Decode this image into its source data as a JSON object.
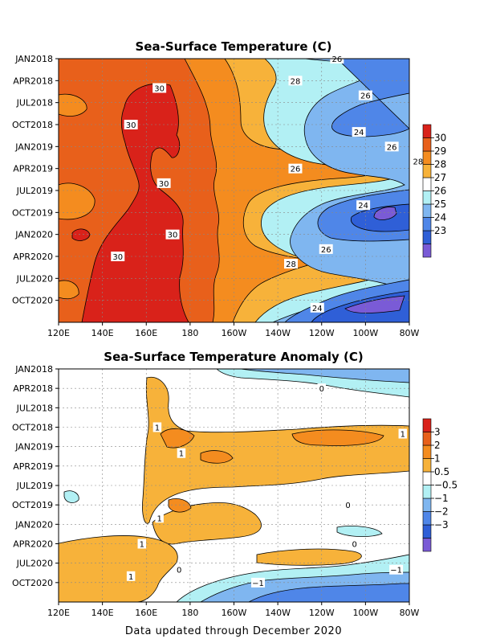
{
  "footer": "Data updated through December 2020",
  "chart_data": [
    {
      "type": "heatmap",
      "title": "Sea-Surface Temperature (C)",
      "x_ticks": [
        "120E",
        "140E",
        "160E",
        "180",
        "160W",
        "140W",
        "120W",
        "100W",
        "80W"
      ],
      "y_ticks": [
        "JAN2018",
        "APR2018",
        "JUL2018",
        "OCT2018",
        "JAN2019",
        "APR2019",
        "JUL2019",
        "OCT2019",
        "JAN2020",
        "APR2020",
        "JUL2020",
        "OCT2020"
      ],
      "levels": [
        23,
        24,
        25,
        26,
        27,
        28,
        29,
        30
      ],
      "colorbar_labels": [
        "30",
        "29",
        "28",
        "27",
        "26",
        "25",
        "24",
        "23"
      ],
      "colors": [
        "#7a5bd6",
        "#2f5fd7",
        "#4f86e8",
        "#7fb6f0",
        "#b2f0f4",
        "#ffffff",
        "#f7b23a",
        "#f48c1f",
        "#e8601b",
        "#d9221a"
      ],
      "contour_labels": [
        {
          "text": "30",
          "lon": 166,
          "date": "2018-05"
        },
        {
          "text": "30",
          "lon": 153,
          "date": "2018-10"
        },
        {
          "text": "30",
          "lon": 168,
          "date": "2019-06"
        },
        {
          "text": "30",
          "lon": 172,
          "date": "2020-01"
        },
        {
          "text": "30",
          "lon": 147,
          "date": "2020-04"
        },
        {
          "text": "28",
          "lon": 228,
          "date": "2018-04"
        },
        {
          "text": "28",
          "lon": 284,
          "date": "2019-03"
        },
        {
          "text": "28",
          "lon": 226,
          "date": "2020-05"
        },
        {
          "text": "26",
          "lon": 247,
          "date": "2018-01"
        },
        {
          "text": "26",
          "lon": 260,
          "date": "2018-06"
        },
        {
          "text": "26",
          "lon": 272,
          "date": "2019-01"
        },
        {
          "text": "26",
          "lon": 228,
          "date": "2019-04"
        },
        {
          "text": "26",
          "lon": 242,
          "date": "2020-03"
        },
        {
          "text": "24",
          "lon": 257,
          "date": "2018-11"
        },
        {
          "text": "24",
          "lon": 259,
          "date": "2019-09"
        },
        {
          "text": "24",
          "lon": 238,
          "date": "2020-11"
        }
      ]
    },
    {
      "type": "heatmap",
      "title": "Sea-Surface Temperature Anomaly (C)",
      "x_ticks": [
        "120E",
        "140E",
        "160E",
        "180",
        "160W",
        "140W",
        "120W",
        "100W",
        "80W"
      ],
      "y_ticks": [
        "JAN2018",
        "APR2018",
        "JUL2018",
        "OCT2018",
        "JAN2019",
        "APR2019",
        "JUL2019",
        "OCT2019",
        "JAN2020",
        "APR2020",
        "JUL2020",
        "OCT2020"
      ],
      "levels": [
        -3,
        -2,
        -1,
        -0.5,
        0.5,
        1,
        2,
        3
      ],
      "colorbar_labels": [
        "3",
        "2",
        "1",
        "0.5",
        "−0.5",
        "−1",
        "−2",
        "−3"
      ],
      "colors": [
        "#7a5bd6",
        "#2f5fd7",
        "#4f86e8",
        "#7fb6f0",
        "#b2f0f4",
        "#ffffff",
        "#f7b23a",
        "#f48c1f",
        "#e8601b",
        "#d9221a"
      ],
      "contour_labels": [
        {
          "text": "0",
          "lon": 240,
          "date": "2018-04"
        },
        {
          "text": "1",
          "lon": 165,
          "date": "2018-10"
        },
        {
          "text": "1",
          "lon": 277,
          "date": "2018-11"
        },
        {
          "text": "1",
          "lon": 176,
          "date": "2019-02"
        },
        {
          "text": "0",
          "lon": 252,
          "date": "2019-10"
        },
        {
          "text": "1",
          "lon": 166,
          "date": "2019-12"
        },
        {
          "text": "1",
          "lon": 158,
          "date": "2020-04"
        },
        {
          "text": "0",
          "lon": 255,
          "date": "2020-04"
        },
        {
          "text": "0",
          "lon": 175,
          "date": "2020-08"
        },
        {
          "text": "1",
          "lon": 153,
          "date": "2020-09"
        },
        {
          "text": "−1",
          "lon": 211,
          "date": "2020-10"
        },
        {
          "text": "−1",
          "lon": 274,
          "date": "2020-08"
        }
      ]
    }
  ]
}
